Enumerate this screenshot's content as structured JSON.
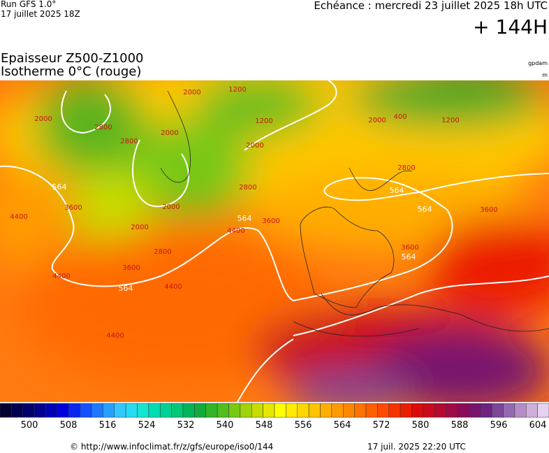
{
  "header": {
    "run": "Run GFS 1.0°",
    "run_date": "17 juillet 2025 18Z",
    "valid": "Echéance : mercredi 23 juillet 2025 18h UTC",
    "lead": "+ 144H",
    "title": "Epaisseur Z500-Z1000",
    "subtitle": "Isotherme 0°C (rouge)",
    "unit_thickness": "gpdam",
    "unit_iso": "m"
  },
  "map": {
    "contour_labels": [
      564,
      564,
      564,
      564,
      564,
      564,
      2000,
      2000,
      2000,
      2000,
      2000,
      2000,
      2000,
      2800,
      2800,
      2800,
      2800,
      2800,
      1200,
      1200,
      1200,
      400,
      3600,
      3600,
      3600,
      3600,
      3600,
      4400,
      4400,
      4400,
      4400,
      4400
    ]
  },
  "colorbar": {
    "colors": [
      "#000033",
      "#000050",
      "#00006e",
      "#000090",
      "#0000b4",
      "#0000dc",
      "#0a28f0",
      "#1450ff",
      "#1e78ff",
      "#28a0ff",
      "#32c8ff",
      "#28dcf0",
      "#14e6d2",
      "#00dcb4",
      "#00d296",
      "#00c878",
      "#00b45a",
      "#14aa3c",
      "#32b428",
      "#50be1e",
      "#78c814",
      "#a0d20a",
      "#c8dc00",
      "#e6e600",
      "#ffff00",
      "#ffeb00",
      "#ffd700",
      "#ffc300",
      "#ffaf00",
      "#ff9b00",
      "#ff8700",
      "#ff7300",
      "#ff5f00",
      "#ff4b00",
      "#f53200",
      "#eb1e00",
      "#dc0a0a",
      "#c80a1e",
      "#b40a32",
      "#a00a46",
      "#8c0a5a",
      "#78146e",
      "#6e2382",
      "#7d4696",
      "#9669b4",
      "#b48cc8",
      "#cdafdc",
      "#e6d2f0"
    ],
    "labels": [
      500,
      508,
      516,
      524,
      532,
      540,
      548,
      556,
      564,
      572,
      580,
      588,
      596,
      604
    ]
  },
  "footer": {
    "url": "© http://www.infoclimat.fr/z/gfs/europe/iso0/144",
    "generated": "17 juil. 2025 22:20 UTC"
  }
}
